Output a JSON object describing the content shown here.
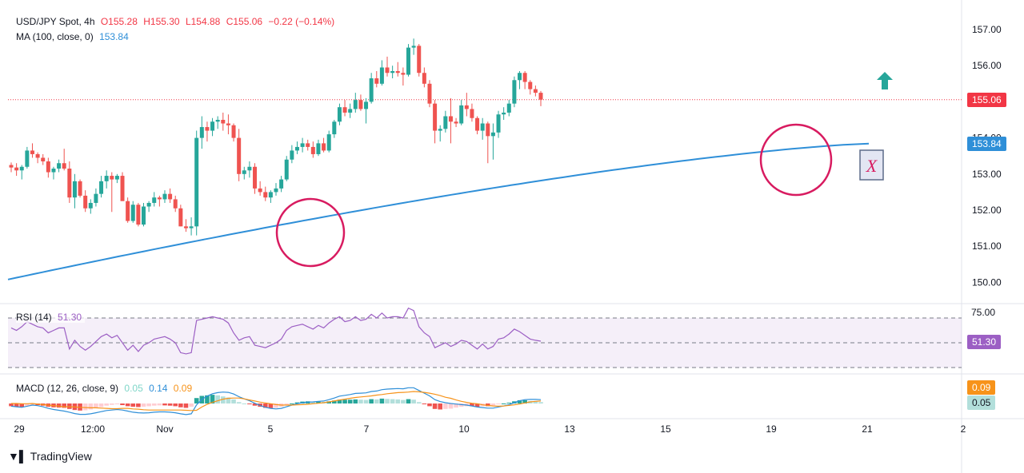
{
  "header": {
    "symbol": "USD/JPY Spot, 4h",
    "open": "O155.28",
    "high": "H155.30",
    "low": "L154.88",
    "close": "C155.06",
    "change": "−0.22 (−0.14%)",
    "ma_label": "MA (100, close, 0)",
    "ma_value": "153.84"
  },
  "rsi": {
    "label": "RSI (14)",
    "value": "51.30",
    "level_label": "75.00"
  },
  "macd": {
    "label": "MACD (12, 26, close, 9)",
    "hist": "0.05",
    "macd": "0.14",
    "signal": "0.09"
  },
  "price_tags": {
    "last": "155.06",
    "ma": "153.84",
    "rsi": "51.30",
    "macd_signal": "0.09",
    "macd_hist": "0.05"
  },
  "annotation_marker": "X",
  "watermark": "TradingView",
  "colors": {
    "up": "#26a69a",
    "down": "#ef5350",
    "ma": "#2f8fd8",
    "rsi": "#9c5fc4",
    "circle": "#d81b60",
    "last": "#f23645"
  },
  "chart_data": [
    {
      "type": "candlestick",
      "title": "USD/JPY Spot, 4h",
      "y_ticks": [
        "150.00",
        "151.00",
        "152.00",
        "153.00",
        "154.00",
        "155.00",
        "156.00",
        "157.00"
      ],
      "x_ticks": [
        "29",
        "12:00",
        "Nov",
        "5",
        "7",
        "10",
        "13",
        "15",
        "19",
        "21",
        "2"
      ],
      "ylim": [
        149.4,
        157.4
      ],
      "candles": [
        [
          153.25,
          153.32,
          153.05,
          153.18
        ],
        [
          153.18,
          153.3,
          152.95,
          153.1
        ],
        [
          153.1,
          153.25,
          152.85,
          153.2
        ],
        [
          153.2,
          153.75,
          153.15,
          153.65
        ],
        [
          153.65,
          153.85,
          153.45,
          153.55
        ],
        [
          153.55,
          153.6,
          153.3,
          153.45
        ],
        [
          153.45,
          153.55,
          153.25,
          153.35
        ],
        [
          153.35,
          153.45,
          152.9,
          153.05
        ],
        [
          153.05,
          153.2,
          152.85,
          153.15
        ],
        [
          153.15,
          153.4,
          153.05,
          153.3
        ],
        [
          153.3,
          153.7,
          153.1,
          153.15
        ],
        [
          153.15,
          153.35,
          152.2,
          152.35
        ],
        [
          152.35,
          153.0,
          152.05,
          152.8
        ],
        [
          152.8,
          152.85,
          152.35,
          152.4
        ],
        [
          152.4,
          152.55,
          151.95,
          152.05
        ],
        [
          152.05,
          152.3,
          151.9,
          152.2
        ],
        [
          152.2,
          152.6,
          152.1,
          152.45
        ],
        [
          152.45,
          152.95,
          152.35,
          152.8
        ],
        [
          152.8,
          153.1,
          152.6,
          152.95
        ],
        [
          152.95,
          153.05,
          151.95,
          152.85
        ],
        [
          152.85,
          153.0,
          152.75,
          152.95
        ],
        [
          152.95,
          153.05,
          152.3,
          152.25
        ],
        [
          152.25,
          152.35,
          151.65,
          151.7
        ],
        [
          151.7,
          152.25,
          151.65,
          152.15
        ],
        [
          152.15,
          152.2,
          151.55,
          151.6
        ],
        [
          151.6,
          152.2,
          151.55,
          152.1
        ],
        [
          152.1,
          152.25,
          151.95,
          152.2
        ],
        [
          152.2,
          152.5,
          152.1,
          152.35
        ],
        [
          152.35,
          152.4,
          152.1,
          152.3
        ],
        [
          152.3,
          152.55,
          152.2,
          152.45
        ],
        [
          152.45,
          152.6,
          152.2,
          152.3
        ],
        [
          152.3,
          152.4,
          151.95,
          152.05
        ],
        [
          152.05,
          152.15,
          151.55,
          151.55
        ],
        [
          151.55,
          151.75,
          151.4,
          151.5
        ],
        [
          151.5,
          151.8,
          151.3,
          151.55
        ],
        [
          151.55,
          154.2,
          151.3,
          154.0
        ],
        [
          154.0,
          154.6,
          153.7,
          154.3
        ],
        [
          154.3,
          154.45,
          153.9,
          154.2
        ],
        [
          154.2,
          154.55,
          154.05,
          154.45
        ],
        [
          154.45,
          154.6,
          154.25,
          154.5
        ],
        [
          154.5,
          154.7,
          154.2,
          154.4
        ],
        [
          154.4,
          154.65,
          154.1,
          154.35
        ],
        [
          154.35,
          154.4,
          153.9,
          154.0
        ],
        [
          154.0,
          154.25,
          152.8,
          153.0
        ],
        [
          153.0,
          153.2,
          152.85,
          153.1
        ],
        [
          153.1,
          153.35,
          152.9,
          153.2
        ],
        [
          153.2,
          153.3,
          152.45,
          152.6
        ],
        [
          152.6,
          152.8,
          152.4,
          152.5
        ],
        [
          152.5,
          152.65,
          152.25,
          152.35
        ],
        [
          152.35,
          152.55,
          152.2,
          152.5
        ],
        [
          152.5,
          152.75,
          152.4,
          152.6
        ],
        [
          152.6,
          152.95,
          152.5,
          152.85
        ],
        [
          152.85,
          153.5,
          152.8,
          153.4
        ],
        [
          153.4,
          153.8,
          153.3,
          153.65
        ],
        [
          153.65,
          153.9,
          153.55,
          153.75
        ],
        [
          153.75,
          154.0,
          153.6,
          153.85
        ],
        [
          153.85,
          153.95,
          153.65,
          153.75
        ],
        [
          153.75,
          153.9,
          153.45,
          153.55
        ],
        [
          153.55,
          153.95,
          153.5,
          153.85
        ],
        [
          153.85,
          154.0,
          153.6,
          153.65
        ],
        [
          153.65,
          154.2,
          153.6,
          154.1
        ],
        [
          154.1,
          154.5,
          154.0,
          154.45
        ],
        [
          154.45,
          154.95,
          154.35,
          154.85
        ],
        [
          154.85,
          155.05,
          154.6,
          154.7
        ],
        [
          154.7,
          154.95,
          154.55,
          154.8
        ],
        [
          154.8,
          155.25,
          154.7,
          155.05
        ],
        [
          155.05,
          155.2,
          154.75,
          154.8
        ],
        [
          154.8,
          155.1,
          154.4,
          155.0
        ],
        [
          155.0,
          155.8,
          154.95,
          155.65
        ],
        [
          155.65,
          155.85,
          155.4,
          155.5
        ],
        [
          155.5,
          156.15,
          155.45,
          155.95
        ],
        [
          155.95,
          156.25,
          155.7,
          155.8
        ],
        [
          155.8,
          156.0,
          155.65,
          155.85
        ],
        [
          155.85,
          156.1,
          155.7,
          155.8
        ],
        [
          155.8,
          155.95,
          155.45,
          155.75
        ],
        [
          155.75,
          156.6,
          155.7,
          156.5
        ],
        [
          156.5,
          156.75,
          156.3,
          156.55
        ],
        [
          156.55,
          156.6,
          155.7,
          155.8
        ],
        [
          155.8,
          155.95,
          155.4,
          155.5
        ],
        [
          155.5,
          155.6,
          154.85,
          154.95
        ],
        [
          154.95,
          155.05,
          153.85,
          154.2
        ],
        [
          154.2,
          154.35,
          153.9,
          154.25
        ],
        [
          154.25,
          154.75,
          154.15,
          154.6
        ],
        [
          154.6,
          155.1,
          153.85,
          154.45
        ],
        [
          154.45,
          154.55,
          154.3,
          154.4
        ],
        [
          154.4,
          155.05,
          154.35,
          154.9
        ],
        [
          154.9,
          155.25,
          154.6,
          154.8
        ],
        [
          154.8,
          154.95,
          154.45,
          154.55
        ],
        [
          154.55,
          154.6,
          154.1,
          154.2
        ],
        [
          154.2,
          154.55,
          153.95,
          154.4
        ],
        [
          154.4,
          154.45,
          153.3,
          154.05
        ],
        [
          154.05,
          154.4,
          153.4,
          154.15
        ],
        [
          154.15,
          154.75,
          154.0,
          154.65
        ],
        [
          154.65,
          154.85,
          154.5,
          154.7
        ],
        [
          154.7,
          155.05,
          154.6,
          154.95
        ],
        [
          154.95,
          155.7,
          154.85,
          155.6
        ],
        [
          155.6,
          155.85,
          155.35,
          155.8
        ],
        [
          155.8,
          155.85,
          155.35,
          155.55
        ],
        [
          155.55,
          155.6,
          155.2,
          155.35
        ],
        [
          155.35,
          155.45,
          155.15,
          155.25
        ],
        [
          155.25,
          155.3,
          154.88,
          155.06
        ]
      ],
      "ma_value": 153.84,
      "last_price": 155.06
    },
    {
      "type": "line",
      "title": "RSI (14)",
      "ylim": [
        25,
        80
      ],
      "levels": [
        70,
        50,
        30
      ],
      "values": [
        62,
        60,
        63,
        67,
        65,
        63,
        62,
        58,
        60,
        62,
        62,
        45,
        52,
        47,
        44,
        47,
        51,
        55,
        57,
        54,
        56,
        50,
        44,
        48,
        43,
        48,
        50,
        53,
        54,
        55,
        53,
        50,
        42,
        41,
        42,
        68,
        69,
        70,
        71,
        70,
        69,
        66,
        58,
        52,
        54,
        55,
        48,
        47,
        46,
        48,
        50,
        53,
        60,
        63,
        64,
        65,
        63,
        61,
        64,
        62,
        66,
        69,
        71,
        67,
        68,
        71,
        68,
        69,
        73,
        70,
        74,
        70,
        71,
        71,
        70,
        78,
        76,
        63,
        58,
        55,
        46,
        48,
        50,
        47,
        49,
        52,
        51,
        48,
        45,
        49,
        45,
        47,
        53,
        54,
        57,
        61,
        59,
        56,
        53,
        52,
        51.3
      ]
    },
    {
      "type": "bar",
      "title": "MACD (12, 26, close, 9)",
      "ylim": [
        -0.65,
        0.75
      ],
      "histogram": [
        -0.1,
        -0.12,
        -0.13,
        -0.09,
        -0.06,
        -0.06,
        -0.08,
        -0.12,
        -0.14,
        -0.15,
        -0.16,
        -0.2,
        -0.24,
        -0.26,
        -0.25,
        -0.22,
        -0.18,
        -0.13,
        -0.08,
        -0.05,
        -0.03,
        -0.06,
        -0.1,
        -0.12,
        -0.13,
        -0.12,
        -0.1,
        -0.08,
        -0.07,
        -0.07,
        -0.08,
        -0.1,
        -0.14,
        -0.16,
        -0.12,
        0.2,
        0.28,
        0.3,
        0.32,
        0.3,
        0.26,
        0.22,
        0.15,
        0.05,
        0.0,
        -0.03,
        -0.08,
        -0.12,
        -0.16,
        -0.17,
        -0.16,
        -0.12,
        -0.06,
        0.0,
        0.04,
        0.07,
        0.08,
        0.07,
        0.07,
        0.06,
        0.08,
        0.11,
        0.14,
        0.14,
        0.14,
        0.15,
        0.14,
        0.13,
        0.16,
        0.15,
        0.18,
        0.17,
        0.16,
        0.15,
        0.13,
        0.16,
        0.14,
        0.05,
        -0.03,
        -0.1,
        -0.2,
        -0.22,
        -0.2,
        -0.19,
        -0.15,
        -0.12,
        -0.1,
        -0.1,
        -0.12,
        -0.1,
        -0.1,
        -0.08,
        -0.03,
        0.0,
        0.03,
        0.08,
        0.12,
        0.12,
        0.09,
        0.07,
        0.05
      ],
      "macd_line": [
        -0.1,
        -0.12,
        -0.14,
        -0.1,
        -0.06,
        -0.08,
        -0.12,
        -0.18,
        -0.22,
        -0.25,
        -0.28,
        -0.32,
        -0.37,
        -0.4,
        -0.4,
        -0.38,
        -0.34,
        -0.3,
        -0.26,
        -0.24,
        -0.22,
        -0.24,
        -0.28,
        -0.32,
        -0.34,
        -0.35,
        -0.34,
        -0.32,
        -0.31,
        -0.31,
        -0.32,
        -0.34,
        -0.38,
        -0.41,
        -0.38,
        -0.05,
        0.15,
        0.27,
        0.36,
        0.4,
        0.42,
        0.41,
        0.35,
        0.25,
        0.17,
        0.1,
        0.01,
        -0.07,
        -0.14,
        -0.18,
        -0.2,
        -0.18,
        -0.12,
        -0.06,
        -0.01,
        0.03,
        0.05,
        0.06,
        0.08,
        0.09,
        0.14,
        0.2,
        0.27,
        0.3,
        0.33,
        0.37,
        0.38,
        0.39,
        0.44,
        0.46,
        0.51,
        0.53,
        0.54,
        0.55,
        0.54,
        0.58,
        0.58,
        0.48,
        0.38,
        0.28,
        0.14,
        0.07,
        0.03,
        0.0,
        -0.02,
        -0.04,
        -0.06,
        -0.09,
        -0.13,
        -0.15,
        -0.17,
        -0.17,
        -0.13,
        -0.09,
        -0.04,
        0.03,
        0.1,
        0.14,
        0.15,
        0.15,
        0.14
      ],
      "signal_line": [
        0.0,
        0.0,
        -0.01,
        -0.01,
        0.0,
        -0.02,
        -0.04,
        -0.06,
        -0.08,
        -0.1,
        -0.12,
        -0.12,
        -0.13,
        -0.14,
        -0.15,
        -0.16,
        -0.16,
        -0.17,
        -0.18,
        -0.19,
        -0.19,
        -0.18,
        -0.18,
        -0.2,
        -0.21,
        -0.23,
        -0.24,
        -0.24,
        -0.24,
        -0.24,
        -0.24,
        -0.24,
        -0.24,
        -0.25,
        -0.26,
        -0.25,
        -0.13,
        -0.03,
        0.04,
        0.1,
        0.16,
        0.19,
        0.2,
        0.2,
        0.17,
        0.13,
        0.09,
        0.05,
        0.02,
        -0.01,
        -0.04,
        -0.06,
        -0.06,
        -0.06,
        -0.05,
        -0.04,
        -0.03,
        -0.01,
        0.01,
        0.03,
        0.06,
        0.09,
        0.13,
        0.16,
        0.19,
        0.22,
        0.24,
        0.26,
        0.28,
        0.31,
        0.33,
        0.36,
        0.38,
        0.4,
        0.41,
        0.42,
        0.44,
        0.43,
        0.41,
        0.38,
        0.34,
        0.29,
        0.23,
        0.19,
        0.13,
        0.08,
        0.04,
        0.01,
        -0.01,
        -0.05,
        -0.07,
        -0.09,
        -0.1,
        -0.09,
        -0.07,
        -0.05,
        -0.02,
        0.02,
        0.06,
        0.08,
        0.09
      ]
    }
  ]
}
